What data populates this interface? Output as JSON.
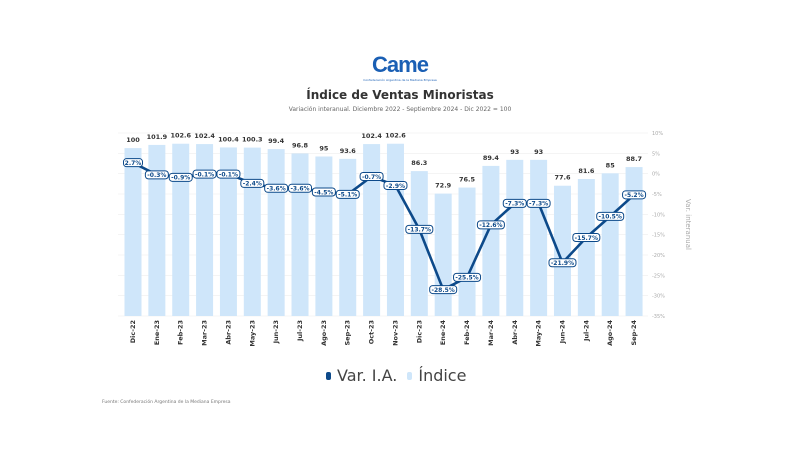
{
  "logo": {
    "text": "Came",
    "subtitle": "Confederación Argentina de la Mediana Empresa"
  },
  "chart_data": {
    "type": "bar+line",
    "title": "Índice de Ventas Minoristas",
    "subtitle": "Variación interanual. Diciembre 2022 - Septiembre 2024 - Dic 2022 = 100",
    "categories": [
      "Dic-22",
      "Ene-23",
      "Feb-23",
      "Mar-23",
      "Abr-23",
      "May-23",
      "Jun-23",
      "Jul-23",
      "Ago-23",
      "Sep-23",
      "Oct-23",
      "Nov-23",
      "Dic-23",
      "Ene-24",
      "Feb-24",
      "Mar-24",
      "Abr-24",
      "May-24",
      "Jun-24",
      "Jul-24",
      "Ago-24",
      "Sep-24"
    ],
    "series": [
      {
        "name": "Índice",
        "type": "bar",
        "axis": "left",
        "color": "#cfe6fa",
        "values": [
          100,
          101.9,
          102.6,
          102.4,
          100.4,
          100.3,
          99.4,
          96.8,
          95,
          93.6,
          102.4,
          102.6,
          86.3,
          72.9,
          76.5,
          89.4,
          93,
          93,
          77.6,
          81.6,
          85,
          88.7
        ]
      },
      {
        "name": "Var. I.A.",
        "type": "line",
        "axis": "right",
        "color": "#0d4a8a",
        "values": [
          2.7,
          -0.3,
          -0.9,
          -0.1,
          -0.1,
          -2.4,
          -3.6,
          -3.6,
          -4.5,
          -5.1,
          -0.7,
          -2.9,
          -13.7,
          -28.5,
          -25.5,
          -12.6,
          -7.3,
          -7.3,
          -21.9,
          -15.7,
          -10.5,
          -5.2
        ]
      }
    ],
    "left_ylim": [
      0,
      109
    ],
    "right_ylim": [
      -35,
      10
    ],
    "right_ticks": [
      "10%",
      "5%",
      "0%",
      "-5%",
      "-10%",
      "-15%",
      "-20%",
      "-25%",
      "-30%",
      "-35%"
    ],
    "right_ylabel": "Var. interanual",
    "grid": true,
    "legend_position": "bottom"
  },
  "source": "Fuente: Confederación Argentina de la Mediana Empresa"
}
